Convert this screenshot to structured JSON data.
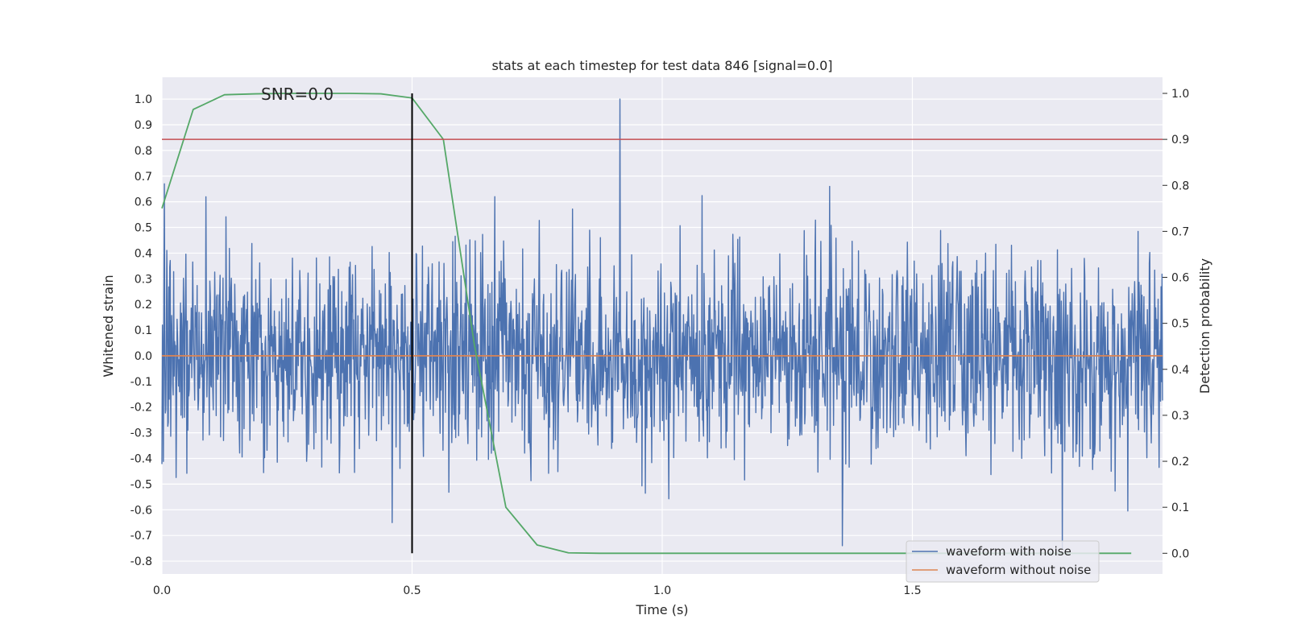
{
  "chart_data": {
    "type": "line",
    "title": "stats at each timestep for test data 846 [signal=0.0]",
    "annotation": "SNR=0.0",
    "xlabel": "Time (s)",
    "ylabel": "Whitened strain",
    "ylabel_right": "Detection probability",
    "xlim": [
      0.0,
      2.0
    ],
    "ylim": [
      -0.85,
      1.085
    ],
    "ylim_right": [
      -0.045,
      1.035
    ],
    "x_ticks": [
      "0.0",
      "0.5",
      "1.0",
      "1.5"
    ],
    "y_ticks": [
      "-0.8",
      "-0.7",
      "-0.6",
      "-0.5",
      "-0.4",
      "-0.3",
      "-0.2",
      "-0.1",
      "0.0",
      "0.1",
      "0.2",
      "0.3",
      "0.4",
      "0.5",
      "0.6",
      "0.7",
      "0.8",
      "0.9",
      "1.0"
    ],
    "y_ticks_right": [
      "0.0",
      "0.1",
      "0.2",
      "0.3",
      "0.4",
      "0.5",
      "0.6",
      "0.7",
      "0.8",
      "0.9",
      "1.0"
    ],
    "grid": true,
    "legend_position": "lower-right",
    "threshold": {
      "value": 0.9,
      "axis": "right",
      "color": "#c44e52"
    },
    "event_marker": {
      "x": 0.5,
      "color": "#000000"
    },
    "series": [
      {
        "name": "waveform with noise",
        "color": "#4c72b0",
        "axis": "left",
        "noise": {
          "n": 2048,
          "std": 0.2,
          "min": -0.76,
          "max": 1.0,
          "spikes": [
            [
              0.005,
              0.67
            ],
            [
              0.915,
              1.0
            ],
            [
              0.5,
              -0.56
            ],
            [
              0.46,
              -0.65
            ],
            [
              1.36,
              -0.74
            ],
            [
              1.8,
              -0.75
            ],
            [
              1.335,
              0.66
            ],
            [
              0.665,
              0.62
            ]
          ]
        }
      },
      {
        "name": "waveform without noise",
        "color": "#dd8452",
        "axis": "left",
        "x": [
          0.0,
          2.0
        ],
        "y": [
          0.0,
          0.0
        ]
      },
      {
        "name": "",
        "color": "#55a868",
        "axis": "right",
        "x": [
          0.0,
          0.0625,
          0.125,
          0.1875,
          0.25,
          0.3125,
          0.375,
          0.4375,
          0.5,
          0.5625,
          0.625,
          0.6875,
          0.75,
          0.8125,
          0.875,
          0.9375,
          1.0,
          1.0625,
          1.125,
          1.1875,
          1.25,
          1.3125,
          1.375,
          1.4375,
          1.5,
          1.5625,
          1.625,
          1.6875,
          1.75,
          1.8125,
          1.875,
          1.9375
        ],
        "y": [
          0.75,
          0.965,
          0.997,
          0.999,
          1.0,
          1.0,
          1.0,
          0.999,
          0.99,
          0.9,
          0.45,
          0.1,
          0.018,
          0.001,
          0.0,
          0.0,
          0.0,
          0.0,
          0.0,
          0.0,
          0.0,
          0.0,
          0.0,
          0.0,
          0.0,
          0.0,
          0.0,
          0.0,
          0.0,
          0.0,
          0.0,
          0.0
        ]
      }
    ]
  }
}
